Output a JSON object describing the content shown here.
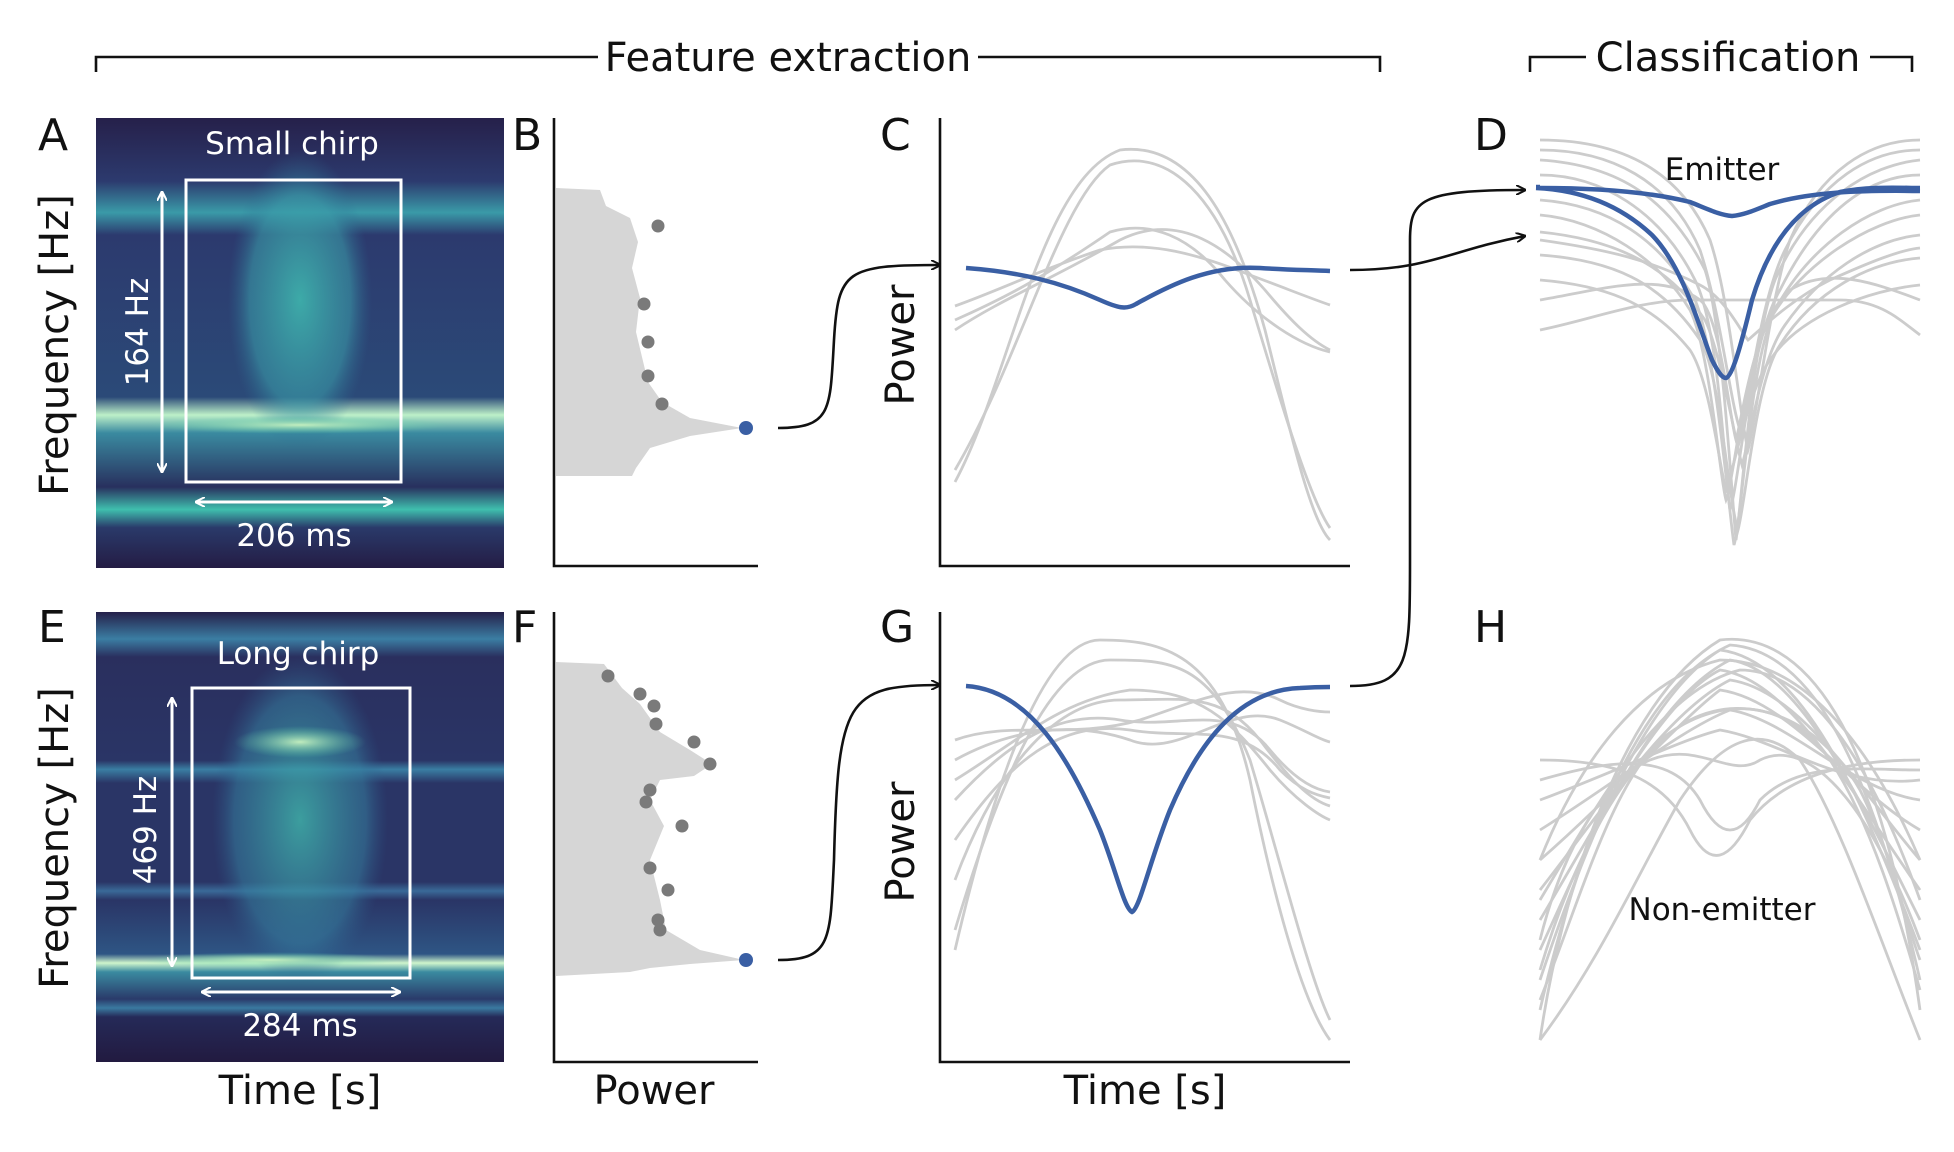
{
  "headers": {
    "feature_extraction": "Feature extraction",
    "classification": "Classification"
  },
  "panels": {
    "a": "A",
    "b": "B",
    "c": "C",
    "d": "D",
    "e": "E",
    "f": "F",
    "g": "G",
    "h": "H"
  },
  "spectrogram_top": {
    "title": "Small chirp",
    "freq_label": "164 Hz",
    "time_label": "206 ms"
  },
  "spectrogram_bottom": {
    "title": "Long chirp",
    "freq_label": "469 Hz",
    "time_label": "284 ms"
  },
  "axes": {
    "frequency": "Frequency [Hz]",
    "time": "Time [s]",
    "power": "Power"
  },
  "classes": {
    "emitter": "Emitter",
    "non_emitter": "Non-emitter"
  },
  "colors": {
    "highlight": "#3a5fa4",
    "background_traces": "#cccccc",
    "marker": "#7a7a7a"
  }
}
